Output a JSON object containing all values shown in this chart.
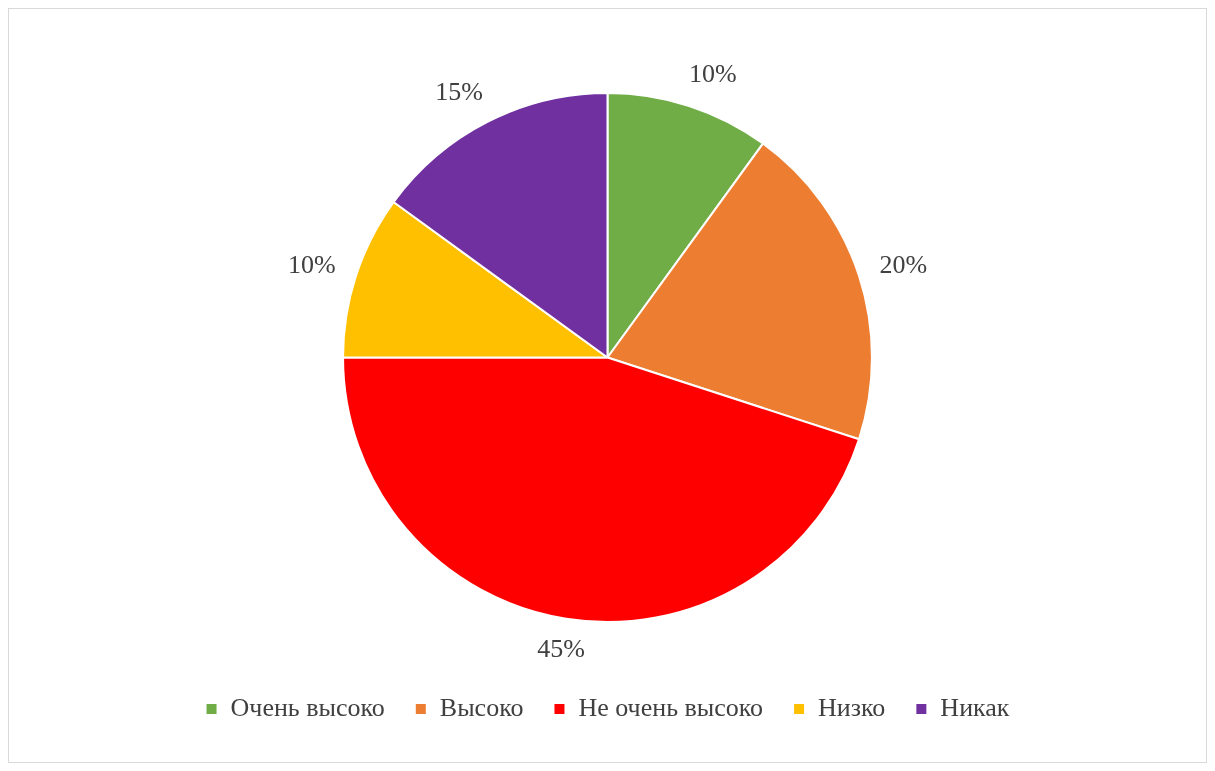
{
  "chart_data": {
    "type": "pie",
    "categories": [
      "Очень высоко",
      "Высоко",
      "Не очень высоко",
      "Низко",
      "Никак"
    ],
    "values": [
      10,
      20,
      45,
      10,
      15
    ],
    "colors": [
      "#70ad47",
      "#ed7d31",
      "#ff0000",
      "#ffc000",
      "#7030a0"
    ],
    "value_labels": [
      "10%",
      "20%",
      "45%",
      "10%",
      "15%"
    ],
    "legend": "bottom"
  }
}
